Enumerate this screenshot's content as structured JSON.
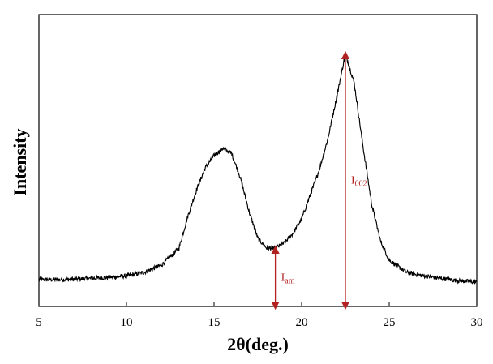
{
  "chart_data": {
    "type": "line",
    "title": "",
    "xlabel": "2θ(deg.)",
    "ylabel": "Intensity",
    "xlim": [
      5,
      30
    ],
    "ylim": [
      0,
      100
    ],
    "x_ticks": [
      5,
      10,
      15,
      20,
      25,
      30
    ],
    "x_tick_labels": [
      "5",
      "10",
      "15",
      "20",
      "25",
      "30"
    ],
    "y_ticks_visible": false,
    "grid": false,
    "legend": "none",
    "series": [
      {
        "x": [
          5,
          6,
          7,
          8,
          9,
          10,
          11,
          12,
          13,
          13.5,
          14,
          14.5,
          15,
          15.5,
          16,
          16.5,
          17,
          17.5,
          18,
          18.5,
          19,
          19.5,
          20,
          20.5,
          21,
          21.5,
          22,
          22.5,
          23,
          23.5,
          24,
          24.5,
          25,
          26,
          27,
          28,
          29,
          30
        ],
        "values": [
          7,
          7,
          7.2,
          7.5,
          8,
          8.5,
          10,
          13,
          20,
          33,
          44,
          53,
          58,
          61,
          59,
          49,
          35,
          24,
          20,
          20,
          22,
          26,
          32,
          42,
          52,
          65,
          82,
          100,
          88,
          62,
          38,
          23,
          15,
          10,
          8.5,
          7.5,
          6.5,
          6
        ],
        "color": "#000000"
      }
    ],
    "annotations": [
      {
        "label": "I",
        "subscript": "am",
        "x": 18.5,
        "y_from": 0,
        "y_to": 20,
        "color": "#b22222"
      },
      {
        "label": "I",
        "subscript": "002",
        "x": 22.5,
        "y_from": 0,
        "y_to": 100,
        "color": "#b22222"
      }
    ]
  }
}
